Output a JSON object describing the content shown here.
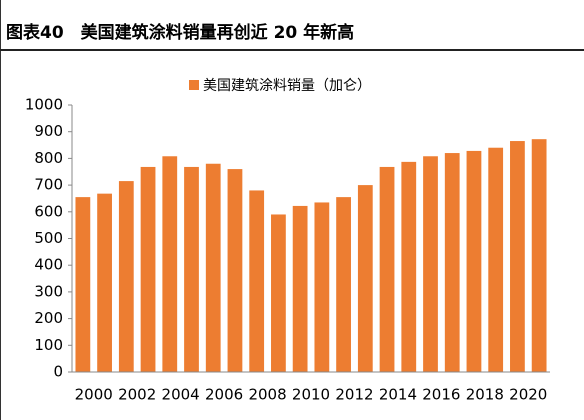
{
  "chart_data": {
    "type": "bar",
    "title": "图表40　美国建筑涂料销量再创近 20 年新高",
    "legend": "美国建筑涂料销量（加仑）",
    "categories": [
      "2000",
      null,
      "2002",
      null,
      "2004",
      null,
      "2006",
      null,
      "2008",
      null,
      "2010",
      null,
      "2012",
      null,
      "2014",
      null,
      "2016",
      null,
      "2018",
      null,
      "2020",
      null
    ],
    "values": [
      655,
      668,
      715,
      768,
      808,
      768,
      780,
      760,
      680,
      590,
      622,
      635,
      655,
      700,
      768,
      787,
      808,
      820,
      828,
      840,
      865,
      872
    ],
    "color": "#ed7d31",
    "ylim": [
      0,
      1000
    ],
    "yticks": [
      0,
      100,
      200,
      300,
      400,
      500,
      600,
      700,
      800,
      900,
      1000
    ],
    "grid": false
  }
}
